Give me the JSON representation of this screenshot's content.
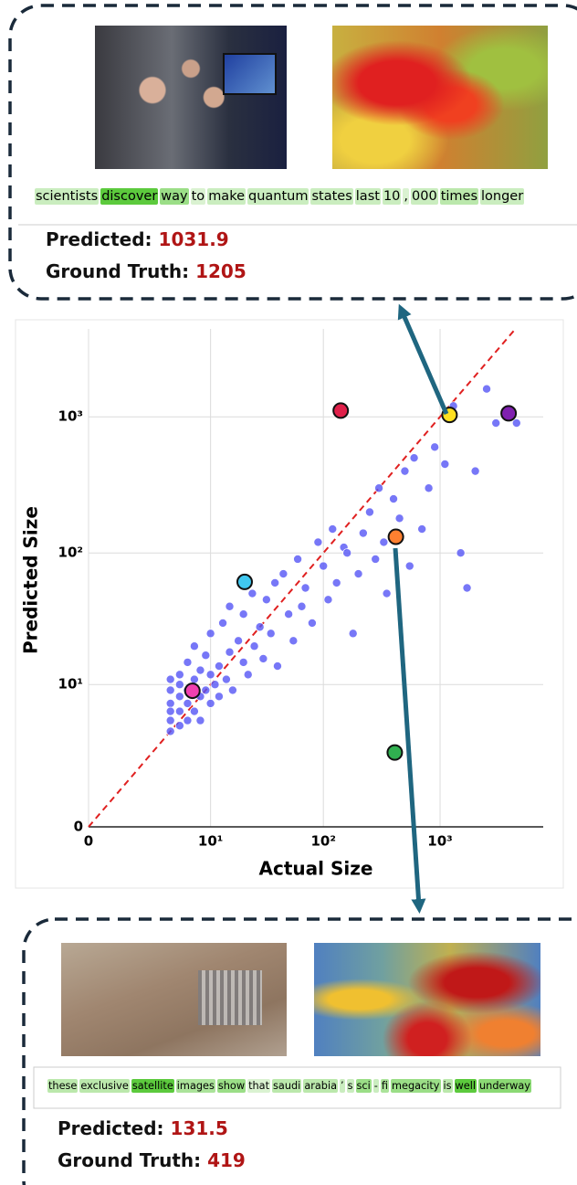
{
  "top_callout": {
    "tokens": [
      {
        "text": "scientists",
        "weight": 0.2
      },
      {
        "text": "discover",
        "weight": 0.9
      },
      {
        "text": "way",
        "weight": 0.5
      },
      {
        "text": "to",
        "weight": 0.1
      },
      {
        "text": "make",
        "weight": 0.2
      },
      {
        "text": "quantum",
        "weight": 0.2
      },
      {
        "text": "states",
        "weight": 0.2
      },
      {
        "text": "last",
        "weight": 0.2
      },
      {
        "text": "10",
        "weight": 0.2
      },
      {
        "text": ",",
        "weight": 0.1
      },
      {
        "text": "000",
        "weight": 0.2
      },
      {
        "text": "times",
        "weight": 0.3
      },
      {
        "text": "longer",
        "weight": 0.2
      }
    ],
    "predicted_label": "Predicted:",
    "predicted": 1031.9,
    "truth_label": "Ground Truth:",
    "truth": 1205
  },
  "bottom_callout": {
    "tokens": [
      {
        "text": "these",
        "weight": 0.3
      },
      {
        "text": "exclusive",
        "weight": 0.3
      },
      {
        "text": "satellite",
        "weight": 0.9
      },
      {
        "text": "images",
        "weight": 0.4
      },
      {
        "text": "show",
        "weight": 0.5
      },
      {
        "text": "that",
        "weight": 0.1
      },
      {
        "text": "saudi",
        "weight": 0.3
      },
      {
        "text": "arabia",
        "weight": 0.3
      },
      {
        "text": "’",
        "weight": 0.2
      },
      {
        "text": "s",
        "weight": 0.2
      },
      {
        "text": "sci",
        "weight": 0.5
      },
      {
        "text": "-",
        "weight": 0.2
      },
      {
        "text": "fi",
        "weight": 0.4
      },
      {
        "text": "megacity",
        "weight": 0.5
      },
      {
        "text": "is",
        "weight": 0.3
      },
      {
        "text": "well",
        "weight": 0.9
      },
      {
        "text": "underway",
        "weight": 0.6
      }
    ],
    "predicted_label": "Predicted:",
    "predicted": 131.5,
    "truth_label": "Ground Truth:",
    "truth": 419
  },
  "chart_data": {
    "type": "scatter",
    "x_label": "Actual Size",
    "y_label": "Predicted Size",
    "scale": "log1p",
    "grid": true,
    "reference_line": true,
    "xlim": [
      0,
      7600
    ],
    "ylim": [
      0,
      4400
    ],
    "xticks": [
      0,
      {
        "value": 10,
        "label": "10¹"
      },
      {
        "value": 100,
        "label": "10²"
      },
      {
        "value": 1000,
        "label": "10³"
      }
    ],
    "yticks": [
      0,
      {
        "value": 10,
        "label": "10¹"
      },
      {
        "value": 100,
        "label": "10²"
      },
      {
        "value": 1000,
        "label": "10³"
      }
    ],
    "series": [
      {
        "color": "#5555f5",
        "x": [
          4,
          4,
          4,
          4,
          4,
          4,
          5,
          5,
          5,
          5,
          5,
          6,
          6,
          6,
          6,
          7,
          7,
          7,
          8,
          8,
          8,
          9,
          9,
          10,
          10,
          10,
          11,
          12,
          12,
          13,
          14,
          15,
          15,
          16,
          18,
          20,
          20,
          22,
          24,
          25,
          28,
          30,
          32,
          35,
          38,
          40,
          45,
          50,
          55,
          60,
          65,
          70,
          80,
          90,
          100,
          110,
          120,
          130,
          150,
          160,
          180,
          200,
          220,
          250,
          280,
          300,
          330,
          350,
          400,
          450,
          500,
          550,
          600,
          700,
          800,
          900,
          1100,
          1300,
          1500,
          1700,
          2000,
          2500,
          3000,
          4500
        ],
        "values": [
          5,
          7,
          9,
          4,
          11,
          6,
          8,
          4.5,
          12,
          6,
          10,
          7,
          5,
          15,
          9,
          6,
          11,
          20,
          8,
          13,
          5,
          9,
          17,
          7,
          12,
          25,
          10,
          14,
          8,
          30,
          11,
          18,
          40,
          9,
          22,
          15,
          35,
          12,
          50,
          20,
          28,
          16,
          45,
          25,
          60,
          14,
          70,
          35,
          22,
          90,
          40,
          55,
          30,
          120,
          80,
          45,
          150,
          60,
          110,
          100,
          25,
          70,
          140,
          200,
          90,
          300,
          120,
          50,
          250,
          180,
          400,
          80,
          500,
          150,
          300,
          600,
          450,
          1200,
          100,
          55,
          400,
          1600,
          900,
          900
        ]
      },
      {
        "colors": [
          "#ffe020",
          "#ff8030",
          "#e0204a",
          "#8020b0",
          "#40c8f0",
          "#f040b0",
          "#30b050"
        ],
        "x": [
          1205,
          419,
          141,
          3850,
          20.5,
          6.7,
          410
        ],
        "values": [
          1031.9,
          131.5,
          1110,
          1060,
          61,
          8.9,
          2.5
        ]
      }
    ]
  }
}
